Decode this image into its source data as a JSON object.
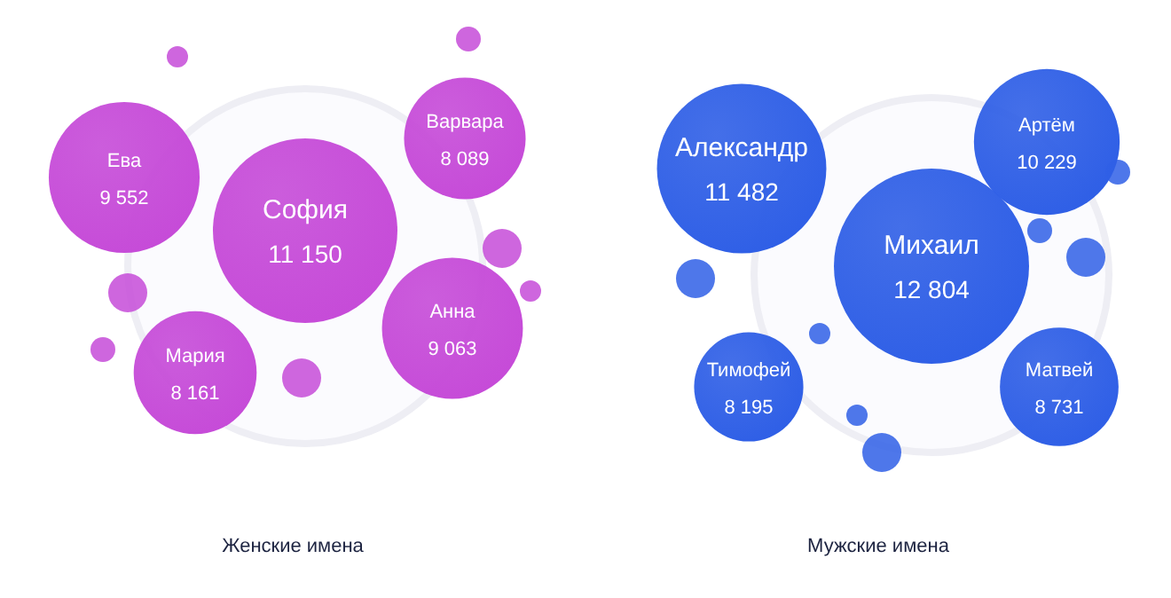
{
  "chart_data": [
    {
      "type": "other",
      "title": "Женские имена",
      "categories": [
        "Ева",
        "София",
        "Варвара",
        "Мария",
        "Анна"
      ],
      "values": [
        9552,
        11150,
        8089,
        8161,
        9063
      ],
      "value_labels": [
        "9 552",
        "11 150",
        "8 089",
        "8 161",
        "9 063"
      ],
      "colors": [
        "#c64bd8",
        "#c64bd8",
        "#c64bd8",
        "#c64bd8",
        "#c64bd8"
      ]
    },
    {
      "type": "other",
      "title": "Мужские имена",
      "categories": [
        "Александр",
        "Михаил",
        "Артём",
        "Тимофей",
        "Матвей"
      ],
      "values": [
        11482,
        12804,
        10229,
        8195,
        8731
      ],
      "value_labels": [
        "11 482",
        "12 804",
        "10 229",
        "8 195",
        "8 731"
      ],
      "colors": [
        "#2f5fe6",
        "#2f5fe6",
        "#2f5fe6",
        "#2f5fe6",
        "#2f5fe6"
      ]
    }
  ]
}
